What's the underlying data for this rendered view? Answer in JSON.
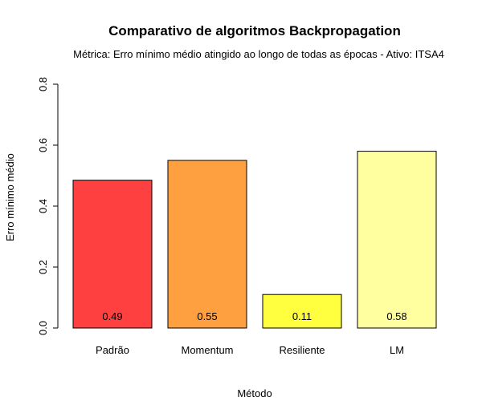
{
  "chart_data": {
    "type": "bar",
    "title": "Comparativo de algoritmos Backpropagation",
    "subtitle": "Métrica: Erro mínimo médio atingido ao longo de todas as épocas - Ativo: ITSA4",
    "xlabel": "Método",
    "ylabel": "Erro mínimo médio",
    "categories": [
      "Padrão",
      "Momentum",
      "Resiliente",
      "LM"
    ],
    "values": [
      0.485,
      0.55,
      0.11,
      0.58
    ],
    "value_labels": [
      "0.49",
      "0.55",
      "0.11",
      "0.58"
    ],
    "colors": [
      "#ff4040",
      "#ffa040",
      "#ffff40",
      "#ffff9f"
    ],
    "ylim": [
      0,
      0.8
    ],
    "yticks": [
      0.0,
      0.2,
      0.4,
      0.6,
      0.8
    ],
    "ytick_labels": [
      "0.0",
      "0.2",
      "0.4",
      "0.6",
      "0.8"
    ],
    "grid": false,
    "legend": "none"
  }
}
